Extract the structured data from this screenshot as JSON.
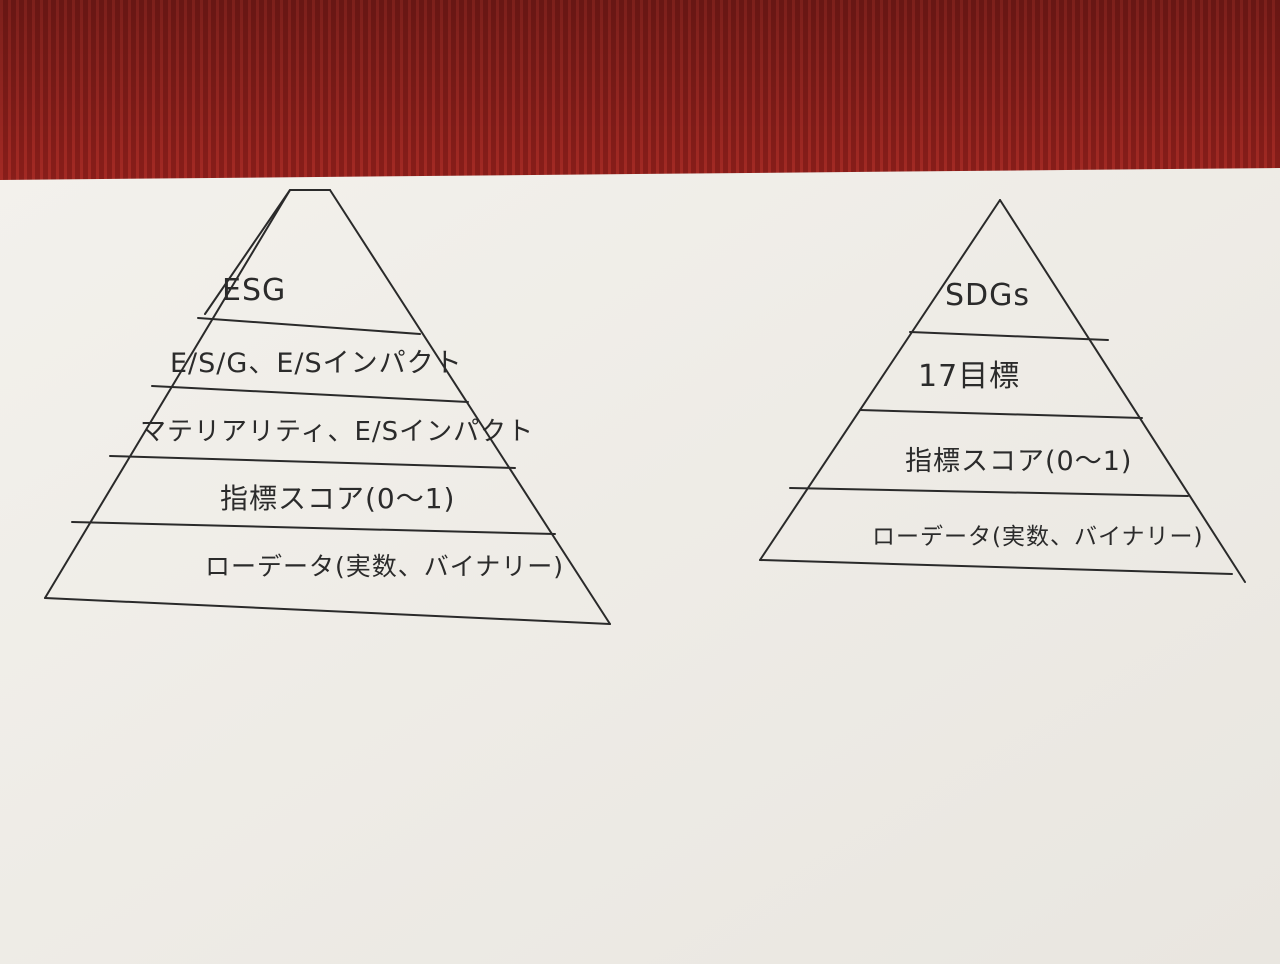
{
  "colors": {
    "tablecloth": "#8a1e1a",
    "tablecloth_stripe": "#a52a24",
    "paper": "#f4f2ee",
    "ink": "#2a2a2a"
  },
  "left_pyramid": {
    "layers": [
      "ESG",
      "E/S/G、E/Sインパクト",
      "マテリアリティ、E/Sインパクト",
      "指標スコア(0〜1)",
      "ローデータ(実数、バイナリー)"
    ]
  },
  "right_pyramid": {
    "layers": [
      "SDGs",
      "17目標",
      "指標スコア(0〜1)",
      "ローデータ(実数、バイナリー)"
    ]
  }
}
